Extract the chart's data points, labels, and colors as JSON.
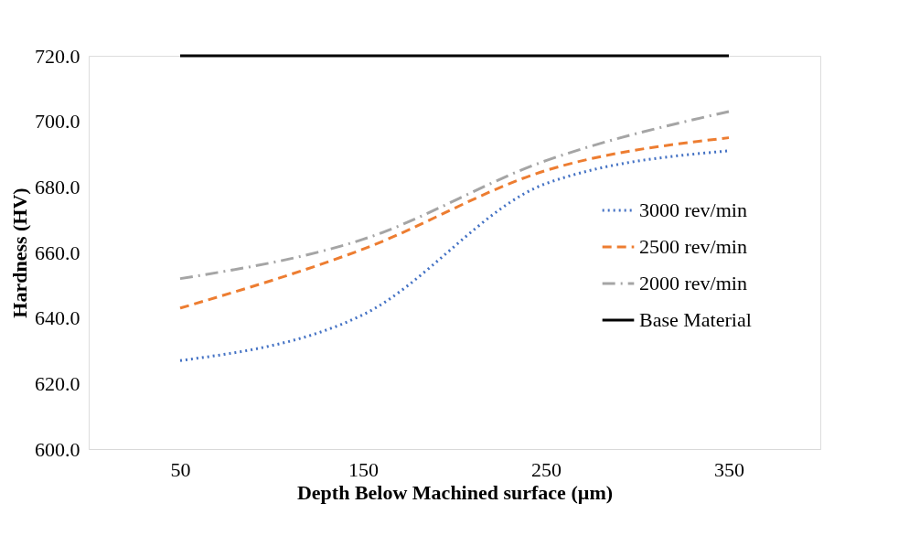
{
  "chart_data": {
    "type": "line",
    "xlabel": "Depth Below Machined surface (µm)",
    "ylabel": "Hardness (HV)",
    "categories": [
      "50",
      "150",
      "250",
      "350"
    ],
    "ylim": [
      600,
      720
    ],
    "yticks": [
      {
        "value": 600,
        "label": "600.0"
      },
      {
        "value": 620,
        "label": "620.0"
      },
      {
        "value": 640,
        "label": "640.0"
      },
      {
        "value": 660,
        "label": "660.0"
      },
      {
        "value": 680,
        "label": "680.0"
      },
      {
        "value": 700,
        "label": "700.0"
      },
      {
        "value": 720,
        "label": "720.0"
      }
    ],
    "grid": false,
    "legend": "right",
    "marker": "none",
    "series": [
      {
        "name": "3000 rev/min",
        "color": "#4472c4",
        "line_style": "dotted",
        "values": [
          627,
          641,
          681,
          691
        ]
      },
      {
        "name": "2500 rev/min",
        "color": "#ed7d31",
        "line_style": "dashed",
        "values": [
          643,
          661,
          685,
          695
        ]
      },
      {
        "name": "2000 rev/min",
        "color": "#a5a5a5",
        "line_style": "dashdot",
        "values": [
          652,
          664,
          688,
          703
        ]
      },
      {
        "name": "Base Material",
        "color": "#000000",
        "line_style": "solid",
        "values": [
          720,
          720,
          720,
          720
        ]
      }
    ]
  }
}
